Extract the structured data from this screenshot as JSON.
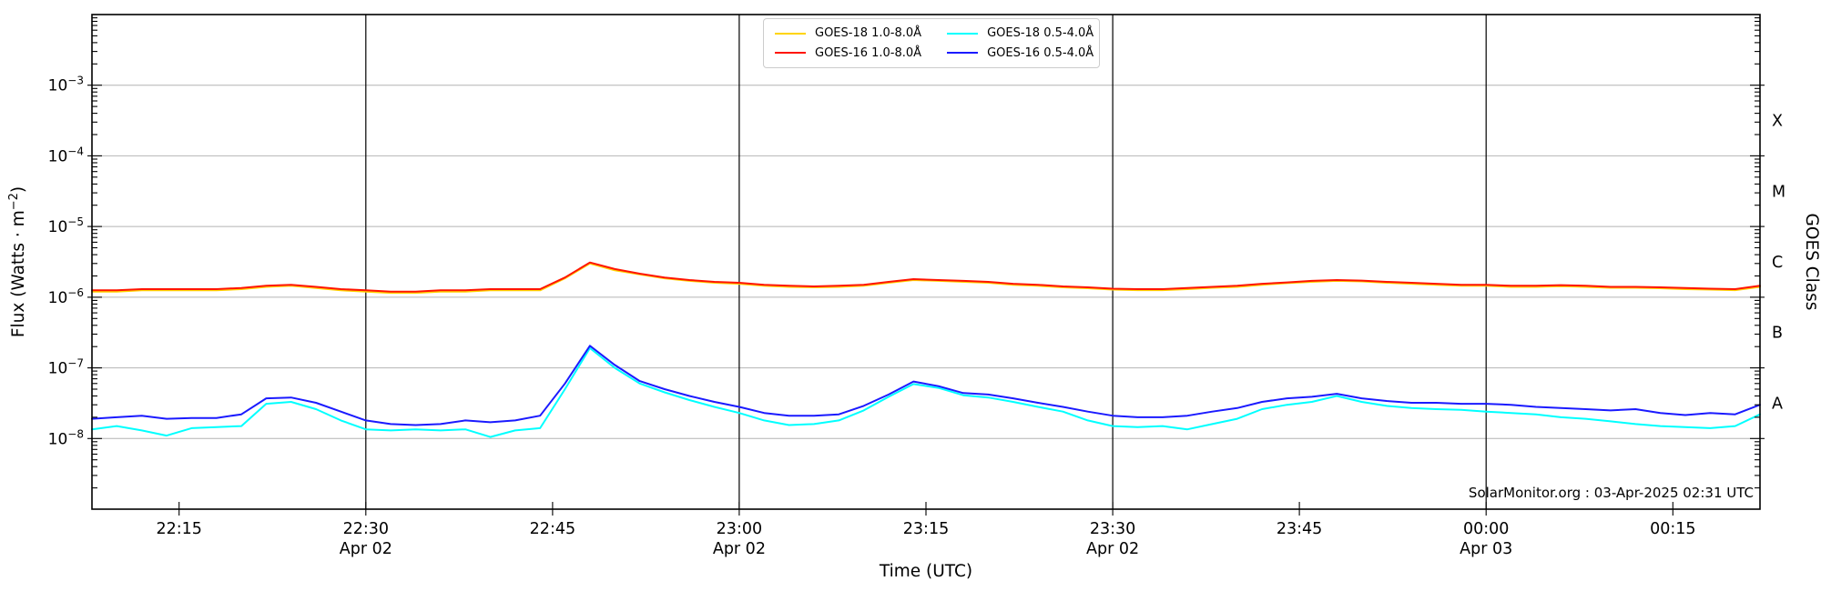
{
  "watermark": {
    "text": "SolarMonitor.org : 03-Apr-2025 02:31 UTC"
  },
  "chart_data": {
    "type": "line",
    "title": "",
    "xlabel": "Time (UTC)",
    "ylabel_left": {
      "prefix": "Flux (Watts · m",
      "sup": "−2",
      "suffix": ")"
    },
    "ylabel_right": "GOES Class",
    "x_start_time": "22:08",
    "x_end_time": "00:22",
    "x_minutes_span": 134,
    "sample_step_minutes": 2,
    "ylim": [
      1e-09,
      0.01
    ],
    "grid": "horizontal-decades",
    "legend_position": "upper center",
    "y_labeled_exponents": [
      -3,
      -4,
      -5,
      -6,
      -7,
      -8
    ],
    "x_ticks": [
      {
        "minute": 7,
        "label": "22:15"
      },
      {
        "minute": 22,
        "label": "22:30",
        "date": "Apr 02",
        "dayline": true
      },
      {
        "minute": 37,
        "label": "22:45"
      },
      {
        "minute": 52,
        "label": "23:00",
        "date": "Apr 02",
        "dayline": true
      },
      {
        "minute": 67,
        "label": "23:15"
      },
      {
        "minute": 82,
        "label": "23:30",
        "date": "Apr 02",
        "dayline": true
      },
      {
        "minute": 97,
        "label": "23:45"
      },
      {
        "minute": 112,
        "label": "00:00",
        "date": "Apr 03",
        "dayline": true
      },
      {
        "minute": 127,
        "label": "00:15"
      }
    ],
    "goes_classes": [
      {
        "label": "X",
        "exponent_center": -3.5
      },
      {
        "label": "M",
        "exponent_center": -4.5
      },
      {
        "label": "C",
        "exponent_center": -5.5
      },
      {
        "label": "B",
        "exponent_center": -6.5
      },
      {
        "label": "A",
        "exponent_center": -7.5
      }
    ],
    "series": [
      {
        "name": "GOES-18 1.0-8.0Å",
        "color": "#ffd400",
        "values": [
          1.2e-06,
          1.2e-06,
          1.25e-06,
          1.25e-06,
          1.25e-06,
          1.25e-06,
          1.3e-06,
          1.4e-06,
          1.45e-06,
          1.35e-06,
          1.25e-06,
          1.2e-06,
          1.15e-06,
          1.15e-06,
          1.2e-06,
          1.2e-06,
          1.25e-06,
          1.25e-06,
          1.25e-06,
          1.85e-06,
          3e-06,
          2.4e-06,
          2.1e-06,
          1.85e-06,
          1.7e-06,
          1.6e-06,
          1.55e-06,
          1.45e-06,
          1.4e-06,
          1.38e-06,
          1.4e-06,
          1.45e-06,
          1.6e-06,
          1.75e-06,
          1.7e-06,
          1.65e-06,
          1.6e-06,
          1.5e-06,
          1.45e-06,
          1.38e-06,
          1.34e-06,
          1.28e-06,
          1.26e-06,
          1.26e-06,
          1.3e-06,
          1.36e-06,
          1.4e-06,
          1.5e-06,
          1.58e-06,
          1.65e-06,
          1.7e-06,
          1.67e-06,
          1.6e-06,
          1.55e-06,
          1.5e-06,
          1.45e-06,
          1.45e-06,
          1.4e-06,
          1.4e-06,
          1.43e-06,
          1.4e-06,
          1.36e-06,
          1.36e-06,
          1.34e-06,
          1.3e-06,
          1.28e-06,
          1.26e-06,
          1.4e-06
        ]
      },
      {
        "name": "GOES-16 1.0-8.0Å",
        "color": "#ff1400",
        "values": [
          1.25e-06,
          1.25e-06,
          1.3e-06,
          1.3e-06,
          1.3e-06,
          1.3e-06,
          1.35e-06,
          1.45e-06,
          1.5e-06,
          1.4e-06,
          1.3e-06,
          1.25e-06,
          1.2e-06,
          1.2e-06,
          1.25e-06,
          1.25e-06,
          1.3e-06,
          1.3e-06,
          1.3e-06,
          1.9e-06,
          3.1e-06,
          2.5e-06,
          2.15e-06,
          1.9e-06,
          1.75e-06,
          1.65e-06,
          1.6e-06,
          1.5e-06,
          1.45e-06,
          1.42e-06,
          1.45e-06,
          1.5e-06,
          1.65e-06,
          1.8e-06,
          1.75e-06,
          1.7e-06,
          1.65e-06,
          1.55e-06,
          1.5e-06,
          1.42e-06,
          1.38e-06,
          1.32e-06,
          1.3e-06,
          1.3e-06,
          1.35e-06,
          1.4e-06,
          1.45e-06,
          1.55e-06,
          1.62e-06,
          1.7e-06,
          1.75e-06,
          1.72e-06,
          1.65e-06,
          1.6e-06,
          1.55e-06,
          1.5e-06,
          1.5e-06,
          1.45e-06,
          1.45e-06,
          1.48e-06,
          1.45e-06,
          1.4e-06,
          1.4e-06,
          1.38e-06,
          1.35e-06,
          1.32e-06,
          1.3e-06,
          1.45e-06
        ]
      },
      {
        "name": "GOES-18 0.5-4.0Å",
        "color": "#00ffff",
        "values": [
          1.35e-08,
          1.5e-08,
          1.3e-08,
          1.1e-08,
          1.4e-08,
          1.45e-08,
          1.5e-08,
          3.1e-08,
          3.3e-08,
          2.6e-08,
          1.8e-08,
          1.35e-08,
          1.3e-08,
          1.35e-08,
          1.3e-08,
          1.35e-08,
          1.05e-08,
          1.3e-08,
          1.4e-08,
          5e-08,
          1.9e-07,
          1e-07,
          6e-08,
          4.5e-08,
          3.5e-08,
          2.8e-08,
          2.3e-08,
          1.8e-08,
          1.55e-08,
          1.6e-08,
          1.8e-08,
          2.5e-08,
          3.9e-08,
          5.9e-08,
          5.2e-08,
          4.1e-08,
          3.8e-08,
          3.3e-08,
          2.8e-08,
          2.4e-08,
          1.8e-08,
          1.5e-08,
          1.45e-08,
          1.5e-08,
          1.35e-08,
          1.6e-08,
          1.9e-08,
          2.6e-08,
          3e-08,
          3.3e-08,
          4e-08,
          3.3e-08,
          2.9e-08,
          2.7e-08,
          2.6e-08,
          2.55e-08,
          2.4e-08,
          2.3e-08,
          2.2e-08,
          2e-08,
          1.9e-08,
          1.75e-08,
          1.6e-08,
          1.5e-08,
          1.45e-08,
          1.4e-08,
          1.5e-08,
          2.2e-08
        ]
      },
      {
        "name": "GOES-16 0.5-4.0Å",
        "color": "#1a1aff",
        "values": [
          1.9e-08,
          2e-08,
          2.1e-08,
          1.9e-08,
          1.95e-08,
          1.95e-08,
          2.2e-08,
          3.7e-08,
          3.8e-08,
          3.2e-08,
          2.4e-08,
          1.8e-08,
          1.6e-08,
          1.55e-08,
          1.6e-08,
          1.8e-08,
          1.7e-08,
          1.8e-08,
          2.1e-08,
          6e-08,
          2.05e-07,
          1.1e-07,
          6.5e-08,
          5e-08,
          4e-08,
          3.3e-08,
          2.8e-08,
          2.3e-08,
          2.1e-08,
          2.1e-08,
          2.2e-08,
          2.9e-08,
          4.2e-08,
          6.4e-08,
          5.5e-08,
          4.4e-08,
          4.2e-08,
          3.7e-08,
          3.2e-08,
          2.8e-08,
          2.4e-08,
          2.1e-08,
          2e-08,
          2e-08,
          2.1e-08,
          2.4e-08,
          2.7e-08,
          3.3e-08,
          3.7e-08,
          3.9e-08,
          4.3e-08,
          3.7e-08,
          3.4e-08,
          3.2e-08,
          3.2e-08,
          3.1e-08,
          3.1e-08,
          3e-08,
          2.8e-08,
          2.7e-08,
          2.6e-08,
          2.5e-08,
          2.6e-08,
          2.3e-08,
          2.15e-08,
          2.3e-08,
          2.2e-08,
          3e-08
        ]
      }
    ]
  }
}
